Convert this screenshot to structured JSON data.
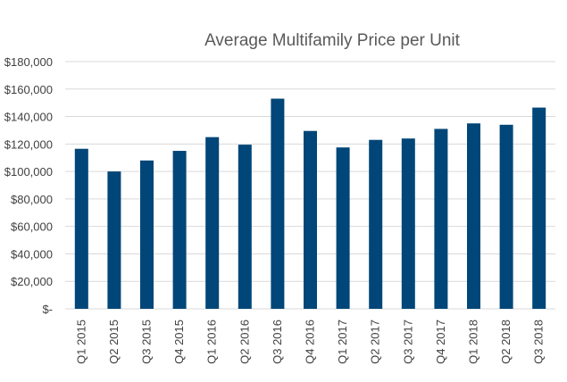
{
  "chart_data": {
    "type": "bar",
    "title": "Average Multifamily Price per Unit",
    "xlabel": "",
    "ylabel": "",
    "categories": [
      "Q1 2015",
      "Q2 2015",
      "Q3 2015",
      "Q4 2015",
      "Q1 2016",
      "Q2 2016",
      "Q3 2016",
      "Q4 2016",
      "Q1 2017",
      "Q2 2017",
      "Q3 2017",
      "Q4 2017",
      "Q1 2018",
      "Q2 2018",
      "Q3 2018"
    ],
    "values": [
      116500,
      100000,
      108000,
      115000,
      125000,
      119500,
      153000,
      129500,
      117500,
      123000,
      124000,
      131000,
      135000,
      134000,
      146500
    ],
    "ylim": [
      0,
      180000
    ],
    "yticks": [
      0,
      20000,
      40000,
      60000,
      80000,
      100000,
      120000,
      140000,
      160000,
      180000
    ],
    "ytick_labels": [
      "$-",
      "$20,000",
      "$40,000",
      "$60,000",
      "$80,000",
      "$100,000",
      "$120,000",
      "$140,000",
      "$160,000",
      "$180,000"
    ],
    "grid": true,
    "legend": "none",
    "bar_color": "#004678",
    "grid_color": "#d9d9d9"
  }
}
